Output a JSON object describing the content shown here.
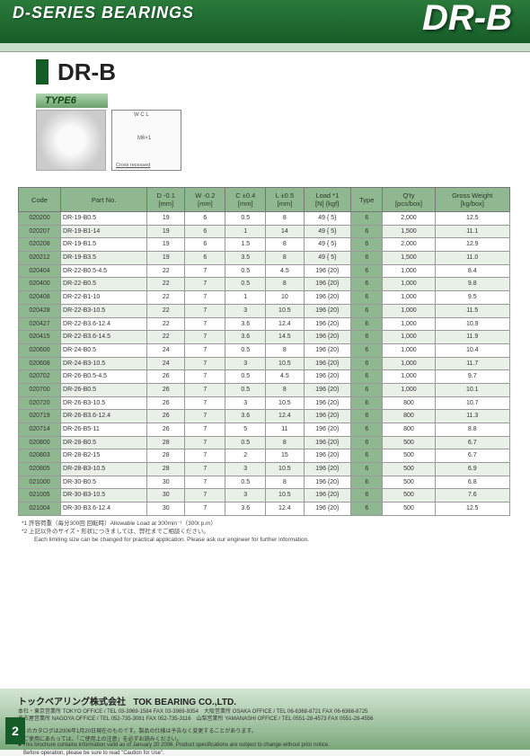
{
  "header": {
    "series": "D-SERIES BEARINGS",
    "model_big": "DR-B",
    "product": "DR-B"
  },
  "type_label": "TYPE6",
  "diagram_labels": {
    "thread": "M6×1",
    "note": "Cross recessed",
    "letters": "W C L"
  },
  "table": {
    "colors": {
      "header_bg": "#8fb890",
      "row_even": "#e8f0e8",
      "row_odd": "#ffffff",
      "accent_col": "#8fb890",
      "border": "#777777"
    },
    "columns": [
      "Code",
      "Part No.",
      "D -0.1\n[mm]",
      "W -0.2\n[mm]",
      "C ±0.4\n[mm]",
      "L ±0.5\n[mm]",
      "Load *1\n[N]  {kgf}",
      "Type",
      "Q'ty\n[pcs/box]",
      "Gross Weight\n[kg/box]"
    ],
    "rows": [
      [
        "020200",
        "DR-19-B0.5",
        "19",
        "6",
        "0.5",
        "8",
        "49 { 5}",
        "6",
        "2,000",
        "12.5"
      ],
      [
        "020207",
        "DR-19-B1-14",
        "19",
        "6",
        "1",
        "14",
        "49 { 5}",
        "6",
        "1,500",
        "11.1"
      ],
      [
        "020208",
        "DR-19-B1.5",
        "19",
        "6",
        "1.5",
        "8",
        "49 { 5}",
        "6",
        "2,000",
        "12.9"
      ],
      [
        "020212",
        "DR-19-B3.5",
        "19",
        "6",
        "3.5",
        "8",
        "49 { 5}",
        "6",
        "1,500",
        "11.0"
      ],
      [
        "020404",
        "DR-22-B0.5-4.5",
        "22",
        "7",
        "0.5",
        "4.5",
        "196 {20}",
        "6",
        "1,000",
        "8.4"
      ],
      [
        "020400",
        "DR-22-B0.5",
        "22",
        "7",
        "0.5",
        "8",
        "196 {20}",
        "6",
        "1,000",
        "9.8"
      ],
      [
        "020408",
        "DR-22-B1-10",
        "22",
        "7",
        "1",
        "10",
        "196 {20}",
        "6",
        "1,000",
        "9.5"
      ],
      [
        "020428",
        "DR-22-B3-10.5",
        "22",
        "7",
        "3",
        "10.5",
        "196 {20}",
        "6",
        "1,000",
        "11.5"
      ],
      [
        "020427",
        "DR-22-B3.6-12.4",
        "22",
        "7",
        "3.6",
        "12.4",
        "196 {20}",
        "6",
        "1,000",
        "10.9"
      ],
      [
        "020415",
        "DR-22-B3.6-14.5",
        "22",
        "7",
        "3.6",
        "14.5",
        "196 {20}",
        "6",
        "1,000",
        "11.9"
      ],
      [
        "020600",
        "DR-24-B0.5",
        "24",
        "7",
        "0.5",
        "8",
        "196 {20}",
        "6",
        "1,000",
        "10.4"
      ],
      [
        "020608",
        "DR-24-B3-10.5",
        "24",
        "7",
        "3",
        "10.5",
        "196 {20}",
        "6",
        "1,000",
        "11.7"
      ],
      [
        "020702",
        "DR-26-B0.5-4.5",
        "26",
        "7",
        "0.5",
        "4.5",
        "196 {20}",
        "6",
        "1,000",
        "9.7"
      ],
      [
        "020700",
        "DR-26-B0.5",
        "26",
        "7",
        "0.5",
        "8",
        "196 {20}",
        "6",
        "1,000",
        "10.1"
      ],
      [
        "020720",
        "DR-26-B3-10.5",
        "26",
        "7",
        "3",
        "10.5",
        "196 {20}",
        "6",
        "800",
        "10.7"
      ],
      [
        "020719",
        "DR-26-B3.6-12.4",
        "26",
        "7",
        "3.6",
        "12.4",
        "196 {20}",
        "6",
        "800",
        "11.3"
      ],
      [
        "020714",
        "DR-26-B5-11",
        "26",
        "7",
        "5",
        "11",
        "196 {20}",
        "6",
        "800",
        "8.8"
      ],
      [
        "020800",
        "DR-28-B0.5",
        "28",
        "7",
        "0.5",
        "8",
        "196 {20}",
        "6",
        "500",
        "6.7"
      ],
      [
        "020803",
        "DR-28-B2-15",
        "28",
        "7",
        "2",
        "15",
        "196 {20}",
        "6",
        "500",
        "6.7"
      ],
      [
        "020805",
        "DR-28-B3-10.5",
        "28",
        "7",
        "3",
        "10.5",
        "196 {20}",
        "6",
        "500",
        "6.9"
      ],
      [
        "021000",
        "DR-30-B0.5",
        "30",
        "7",
        "0.5",
        "8",
        "196 {20}",
        "6",
        "500",
        "6.8"
      ],
      [
        "021005",
        "DR-30-B3-10.5",
        "30",
        "7",
        "3",
        "10.5",
        "196 {20}",
        "6",
        "500",
        "7.6"
      ],
      [
        "021004",
        "DR-30-B3.6-12.4",
        "30",
        "7",
        "3.6",
        "12.4",
        "196 {20}",
        "6",
        "500",
        "12.5"
      ]
    ]
  },
  "notes": {
    "n1": "*1  許容荷重（毎分300回 回転時）Allowable Load at 300min⁻¹（300r.p.m）",
    "n2": "*2  上記以外のサイズ・形状につきましては、弊社までご相談ください。",
    "n2_en": "Each limiting size can be changed for practical application. Please ask our engineer for further information."
  },
  "footer": {
    "company_jp": "トックベアリング株式会社",
    "company_en": "TOK BEARING CO.,LTD.",
    "offices": "本社・東京営業所 TOKYO OFFICE / TEL 03-3969-1584 FAX 03-3969-9354　大阪営業所 OSAKA OFFICE / TEL 06-6368-8721 FAX 06-6368-8725\n名古屋営業所 NAGOYA OFFICE / TEL 052-735-3081 FAX 052-735-3116　山梨営業所 YAMANASHI OFFICE / TEL 0551-28-4573 FAX 0551-28-4556",
    "catalog_note": "■このカタログは2006年1月20日現在のものです。製品の仕様は予告なく変更することがあります。\n　ご使用にあたっては、「ご使用上の注意」を必ずお読みください。\n■ This brochure contains information valid as of January 20 2006. Product specifications are subject to change without prior notice.\n　Before operation, please be sure to read \"Caution for Use\".",
    "page": "2"
  }
}
